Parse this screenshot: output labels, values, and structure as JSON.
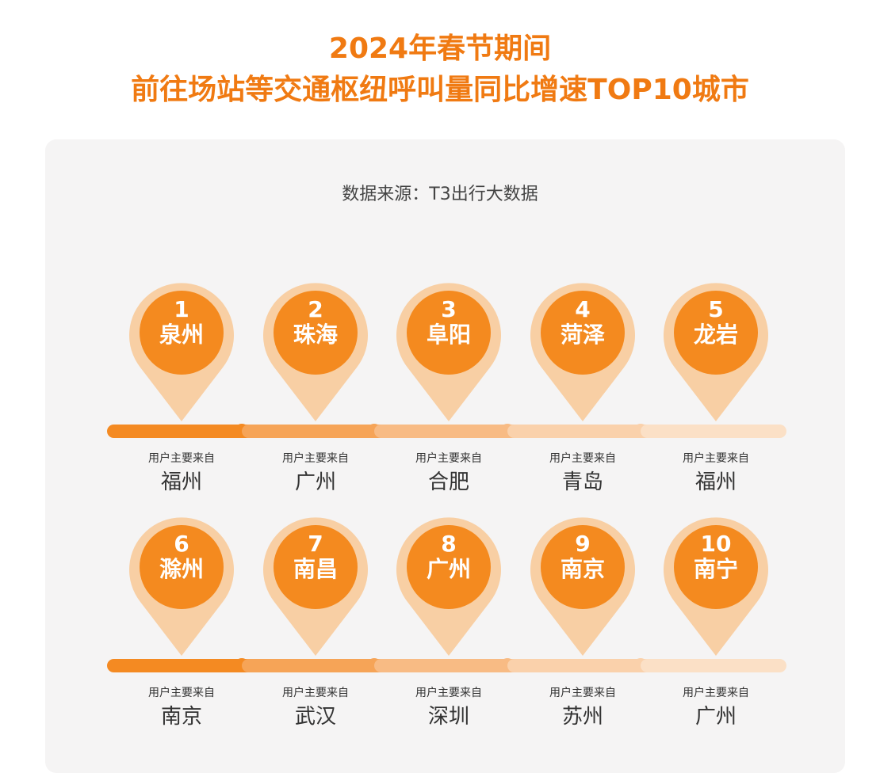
{
  "header": {
    "title_line1": "2024年春节期间",
    "title_line2": "前往场站等交通枢纽呼叫量同比增速TOP10城市"
  },
  "source": "数据来源：T3出行大数据",
  "colors": {
    "accent": "#f07a12",
    "pin_fill": "#f48a1f",
    "pin_halo": "#f8cfa4",
    "panel_bg": "#f5f4f4",
    "bar_shades": [
      "#f48a22",
      "#f6a457",
      "#f8bb84",
      "#fad1ab",
      "#fbe0c6"
    ]
  },
  "chart_data": {
    "type": "table",
    "origin_prefix": "用户主要来自",
    "columns": [
      "rank",
      "city",
      "origin"
    ],
    "rows": [
      {
        "rank": "1",
        "city": "泉州",
        "origin": "福州"
      },
      {
        "rank": "2",
        "city": "珠海",
        "origin": "广州"
      },
      {
        "rank": "3",
        "city": "阜阳",
        "origin": "合肥"
      },
      {
        "rank": "4",
        "city": "菏泽",
        "origin": "青岛"
      },
      {
        "rank": "5",
        "city": "龙岩",
        "origin": "福州"
      },
      {
        "rank": "6",
        "city": "滁州",
        "origin": "南京"
      },
      {
        "rank": "7",
        "city": "南昌",
        "origin": "武汉"
      },
      {
        "rank": "8",
        "city": "广州",
        "origin": "深圳"
      },
      {
        "rank": "9",
        "city": "南京",
        "origin": "苏州"
      },
      {
        "rank": "10",
        "city": "南宁",
        "origin": "广州"
      }
    ]
  }
}
